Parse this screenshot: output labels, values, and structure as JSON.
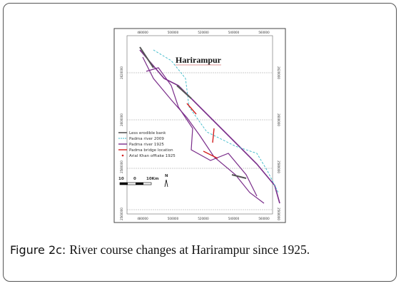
{
  "figure": {
    "map": {
      "title": "Harirampur",
      "x_labels": [
        "480000",
        "500000",
        "520000",
        "540000",
        "560000"
      ],
      "y_labels": [
        "2620000",
        "2600000",
        "2580000",
        "2560000"
      ],
      "legend": [
        "Less erodible bank",
        "Padma river 2009",
        "Padma river 1925",
        "Padma bridge location",
        "Arial Khan offtake 1925"
      ],
      "scale": {
        "left": "10",
        "zero": "0",
        "right": "10Km"
      },
      "north": "N"
    },
    "caption": {
      "label": "Figure 2c:",
      "text": "River course changes at Harirampur since 1925."
    }
  }
}
